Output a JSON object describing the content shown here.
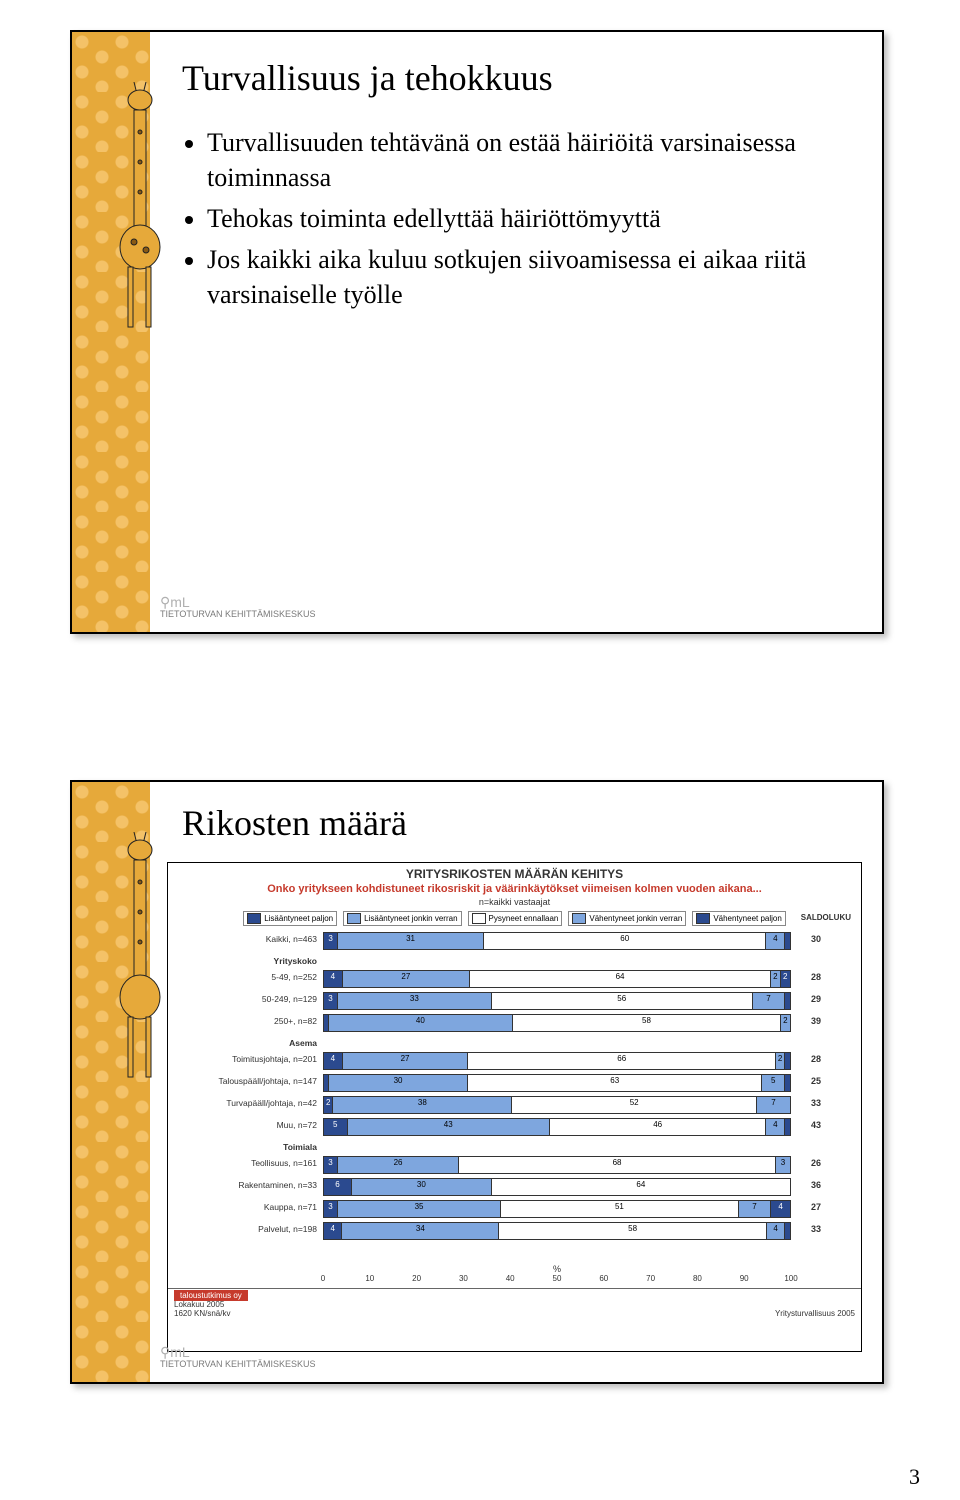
{
  "page_number": "3",
  "slide1": {
    "title": "Turvallisuus ja tehokkuus",
    "bullets": [
      "Turvallisuuden tehtävänä on estää häiriöitä varsinaisessa toiminnassa",
      "Tehokas toiminta edellyttää häiriöttömyyttä",
      "Jos kaikki aika kuluu sotkujen siivoamisessa ei aikaa riitä varsinaiselle työlle"
    ],
    "logo_text": "TIETOTURVAN KEHITTÄMISKESKUS"
  },
  "slide2": {
    "title": "Rikosten määrä",
    "chart": {
      "type": "stacked-horizontal-bar",
      "title1": "YRITYSRIKOSTEN MÄÄRÄN KEHITYS",
      "title2": "Onko yritykseen kohdistuneet rikosriskit ja väärinkäytökset viimeisen kolmen vuoden aikana...",
      "subtitle": "n=kaikki vastaajat",
      "legend": [
        {
          "label": "Lisääntyneet paljon",
          "color": "#2b4a8f"
        },
        {
          "label": "Lisääntyneet jonkin verran",
          "color": "#7ea6de"
        },
        {
          "label": "Pysyneet ennallaan",
          "color": "#ffffff"
        },
        {
          "label": "Vähentyneet jonkin verran",
          "color": "#7ea6de"
        },
        {
          "label": "Vähentyneet paljon",
          "color": "#2b4a8f"
        }
      ],
      "saldo_header": "SALDOLUKU",
      "groups": [
        {
          "heading": "",
          "rows": [
            {
              "label": "Kaikki, n=463",
              "segs": [
                3,
                31,
                60,
                4,
                1
              ],
              "saldo": 30
            }
          ]
        },
        {
          "heading": "Yrityskoko",
          "rows": [
            {
              "label": "5-49, n=252",
              "segs": [
                4,
                27,
                64,
                2,
                2
              ],
              "saldo": 28
            },
            {
              "label": "50-249, n=129",
              "segs": [
                3,
                33,
                56,
                7,
                1
              ],
              "saldo": 29
            },
            {
              "label": "250+, n=82",
              "segs": [
                1,
                40,
                58,
                2,
                0
              ],
              "saldo": 39
            }
          ]
        },
        {
          "heading": "Asema",
          "rows": [
            {
              "label": "Toimitusjohtaja, n=201",
              "segs": [
                4,
                27,
                66,
                2,
                1
              ],
              "saldo": 28
            },
            {
              "label": "Talouspääll/johtaja, n=147",
              "segs": [
                1,
                30,
                63,
                5,
                1
              ],
              "saldo": 25
            },
            {
              "label": "Turvapääll/johtaja, n=42",
              "segs": [
                2,
                38,
                52,
                7,
                0
              ],
              "saldo": 33
            },
            {
              "label": "Muu, n=72",
              "segs": [
                5,
                43,
                46,
                4,
                1
              ],
              "saldo": 43
            }
          ]
        },
        {
          "heading": "Toimiala",
          "rows": [
            {
              "label": "Teollisuus, n=161",
              "segs": [
                3,
                26,
                68,
                3,
                0
              ],
              "saldo": 26
            },
            {
              "label": "Rakentaminen, n=33",
              "segs": [
                6,
                30,
                64,
                0,
                0
              ],
              "saldo": 36
            },
            {
              "label": "Kauppa, n=71",
              "segs": [
                3,
                35,
                51,
                7,
                4
              ],
              "saldo": 27
            },
            {
              "label": "Palvelut, n=198",
              "segs": [
                4,
                34,
                58,
                4,
                1
              ],
              "saldo": 33
            }
          ]
        }
      ],
      "x_ticks": [
        0,
        10,
        20,
        30,
        40,
        50,
        60,
        70,
        80,
        90,
        100
      ],
      "x_label": "%",
      "footer_left_brand": "taloustutkimus oy",
      "footer_left1": "Lokakuu 2005",
      "footer_left2": "1620 KN/snä/kv",
      "footer_right": "Yritysturvallisuus 2005",
      "colors": {
        "seg1": "#2b4a8f",
        "seg2": "#7ea6de",
        "seg3": "#ffffff",
        "seg4": "#7ea6de",
        "seg5": "#2b4a8f"
      }
    },
    "logo_text": "TIETOTURVAN KEHITTÄMISKESKUS"
  }
}
